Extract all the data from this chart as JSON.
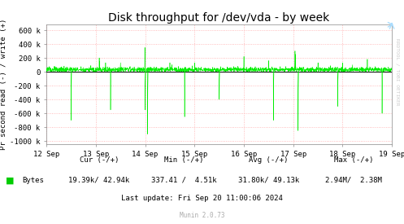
{
  "title": "Disk throughput for /dev/vda - by week",
  "ylabel": "Pr second read (-) / write (+)",
  "background_color": "#ffffff",
  "plot_bg_color": "#ffffff",
  "grid_color": "#ffaaaa",
  "line_color": "#00ee00",
  "zero_line_color": "#000000",
  "ylim": [
    -1050000,
    680000
  ],
  "yticks": [
    -1000000,
    -800000,
    -600000,
    -400000,
    -200000,
    0,
    200000,
    400000,
    600000
  ],
  "ytick_labels": [
    "-1000 k",
    "-800 k",
    "-600 k",
    "-400 k",
    "-200 k",
    "0",
    "200 k",
    "400 k",
    "600 k"
  ],
  "xtick_labels": [
    "12 Sep",
    "13 Sep",
    "14 Sep",
    "15 Sep",
    "16 Sep",
    "17 Sep",
    "18 Sep",
    "19 Sep"
  ],
  "legend_label": "Bytes",
  "legend_color": "#00cc00",
  "cur_text": "Cur (-/+)",
  "cur_val": "19.39k/ 42.94k",
  "min_text": "Min (-/+)",
  "min_val": "337.41 /  4.51k",
  "avg_text": "Avg (-/+)",
  "avg_val": "31.80k/ 49.13k",
  "max_text": "Max (-/+)",
  "max_val": "2.94M/  2.38M",
  "last_update": "Last update: Fri Sep 20 11:00:06 2024",
  "munin_version": "Munin 2.0.73",
  "rrdtool_label": "RRDTOOL / TOBI OETIKER",
  "title_fontsize": 10,
  "axis_fontsize": 6.5,
  "tick_fontsize": 6.5,
  "footer_fontsize": 6.5,
  "munin_fontsize": 5.5
}
